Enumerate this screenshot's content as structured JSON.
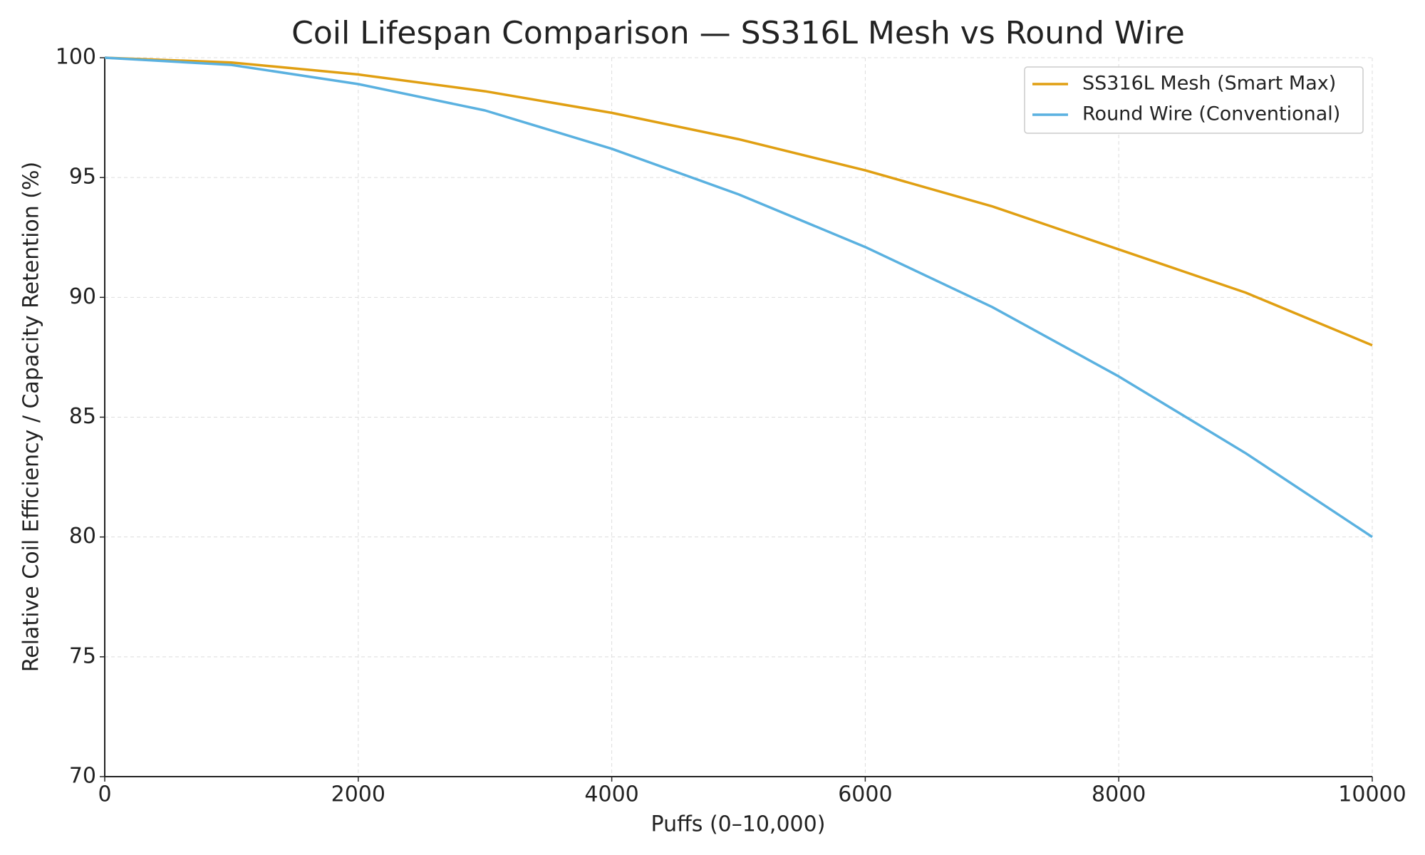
{
  "chart_data": {
    "type": "line",
    "title": "Coil Lifespan Comparison — SS316L Mesh vs Round Wire",
    "x_label": "Puffs (0–10,000)",
    "y_label": "Relative Coil Efficiency / Capacity Retention (%)",
    "x": [
      0,
      1000,
      2000,
      3000,
      4000,
      5000,
      6000,
      7000,
      8000,
      9000,
      10000
    ],
    "series": [
      {
        "name": "SS316L Mesh (Smart Max)",
        "color": "#e09f12",
        "values": [
          100,
          99.8,
          99.3,
          98.6,
          97.7,
          96.6,
          95.3,
          93.8,
          92.0,
          90.2,
          88
        ]
      },
      {
        "name": "Round Wire (Conventional)",
        "color": "#5ab1e0",
        "values": [
          100,
          99.7,
          98.9,
          97.8,
          96.2,
          94.3,
          92.1,
          89.6,
          86.7,
          83.5,
          80
        ]
      }
    ],
    "xlim": [
      0,
      10000
    ],
    "xticks": [
      0,
      2000,
      4000,
      6000,
      8000,
      10000
    ],
    "ylim": [
      70,
      100
    ],
    "yticks": [
      70,
      75,
      80,
      85,
      90,
      95,
      100
    ],
    "grid": true,
    "legend": "upper-right"
  }
}
